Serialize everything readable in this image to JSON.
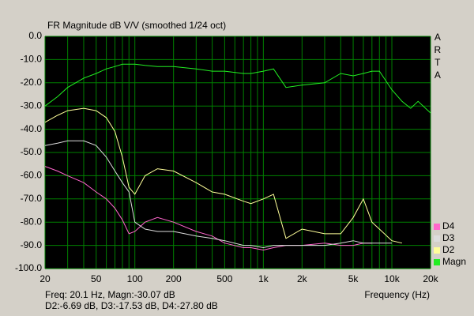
{
  "chart_data": {
    "type": "line",
    "title": "FR Magnitude dB V/V (smoothed 1/24 oct)",
    "side_label": "ARTA",
    "x_label": "Frequency (Hz)",
    "readout": [
      "Freq: 20.1 Hz, Magn:-30.07 dB",
      "D2:-6.69 dB, D3:-17.53 dB, D4:-27.80 dB"
    ],
    "x_scale": "log",
    "grid": true,
    "grid_color": "#008000",
    "plot_background": "#000000",
    "legend": "lower right",
    "xlim": [
      20,
      20000
    ],
    "ylim": [
      -100,
      0
    ],
    "xticks": [
      20,
      50,
      100,
      200,
      500,
      {
        "value": 1000,
        "label": "1k"
      },
      {
        "value": 2000,
        "label": "2k"
      },
      {
        "value": 5000,
        "label": "5k"
      },
      {
        "value": 10000,
        "label": "10k"
      },
      {
        "value": 20000,
        "label": "20k"
      }
    ],
    "xminor": [
      30,
      40,
      60,
      70,
      80,
      90,
      300,
      400,
      600,
      700,
      800,
      900,
      3000,
      4000,
      6000,
      7000,
      8000,
      9000
    ],
    "yticks": [
      {
        "value": 0,
        "label": "0.0"
      },
      {
        "value": -10,
        "label": "-10.0"
      },
      {
        "value": -20,
        "label": "-20.0"
      },
      {
        "value": -30,
        "label": "-30.0"
      },
      {
        "value": -40,
        "label": "-40.0"
      },
      {
        "value": -50,
        "label": "-50.0"
      },
      {
        "value": -60,
        "label": "-60.0"
      },
      {
        "value": -70,
        "label": "-70.0"
      },
      {
        "value": -80,
        "label": "-80.0"
      },
      {
        "value": -90,
        "label": "-90.0"
      },
      {
        "value": -100,
        "label": "-100.0"
      }
    ],
    "x": [
      20,
      25,
      30,
      40,
      50,
      60,
      70,
      80,
      90,
      100,
      120,
      150,
      200,
      300,
      400,
      500,
      700,
      800,
      1000,
      1200,
      1500,
      2000,
      3000,
      4000,
      5000,
      6000,
      7000,
      8000,
      10000,
      12000,
      14000,
      16000,
      20000
    ],
    "series": [
      {
        "name": "D4",
        "color": "#ff66cc",
        "values": [
          -56,
          -58,
          -60,
          -63,
          -67,
          -70,
          -74,
          -79,
          -85,
          -84,
          -80,
          -78,
          -80,
          -84,
          -86,
          -89,
          -91,
          -91,
          -92,
          -91,
          -90,
          -90,
          -89,
          -90,
          -90,
          -89,
          -89,
          null,
          null,
          null,
          null,
          null,
          null
        ]
      },
      {
        "name": "D3",
        "color": "#dcdcdc",
        "values": [
          -47,
          -46,
          -45,
          -45,
          -47,
          -52,
          -58,
          -63,
          -67,
          -80,
          -83,
          -84,
          -84,
          -86,
          -87,
          -88,
          -90,
          -90,
          -91,
          -90,
          -90,
          -90,
          -90,
          -89,
          -88,
          -89,
          -89,
          -89,
          -89,
          null,
          null,
          null,
          null
        ]
      },
      {
        "name": "D2",
        "color": "#ffff99",
        "values": [
          -37,
          -34,
          -32,
          -31,
          -32,
          -35,
          -41,
          -52,
          -65,
          -68,
          -60,
          -57,
          -58,
          -63,
          -67,
          -68,
          -71,
          -72,
          -70,
          -68,
          -87,
          -83,
          -85,
          -85,
          -78,
          -70,
          -80,
          -83,
          -88,
          -89,
          null,
          null,
          null
        ]
      },
      {
        "name": "Magn",
        "color": "#22ee22",
        "values": [
          -30,
          -26,
          -22,
          -18,
          -16,
          -14,
          -13,
          -12,
          -12,
          -12,
          -12.5,
          -13,
          -13,
          -14,
          -15,
          -15,
          -16,
          -16,
          -15,
          -14,
          -22,
          -21,
          -20,
          -16,
          -17,
          -16,
          -15,
          -15,
          -23,
          -28,
          -31,
          -28,
          -33
        ]
      }
    ]
  }
}
